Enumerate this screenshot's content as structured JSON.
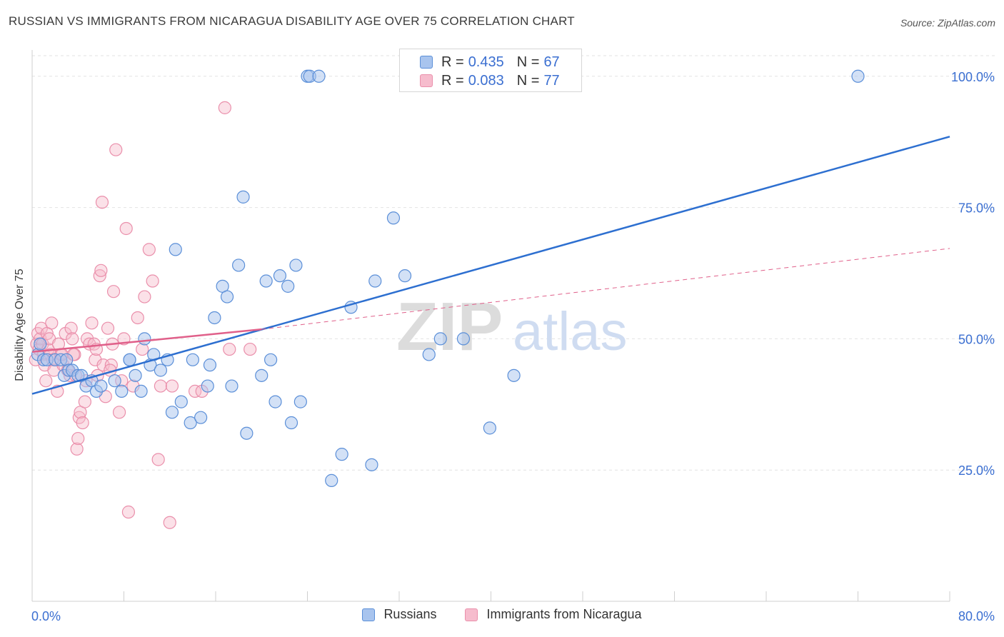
{
  "title": "RUSSIAN VS IMMIGRANTS FROM NICARAGUA DISABILITY AGE OVER 75 CORRELATION CHART",
  "source": "Source: ZipAtlas.com",
  "watermark": {
    "zip": "ZIP",
    "atlas": "atlas"
  },
  "legend_top": {
    "russians": {
      "r_label": "R =",
      "r_value": "0.435",
      "n_label": "N =",
      "n_value": "67"
    },
    "nicaragua": {
      "r_label": "R =",
      "r_value": "0.083",
      "n_label": "N =",
      "n_value": "77"
    }
  },
  "legend_bottom": {
    "russians": "Russians",
    "nicaragua": "Immigrants from Nicaragua"
  },
  "colors": {
    "blue_fill": "#a8c4ee",
    "blue_stroke": "#5b8fd8",
    "blue_line": "#2d6fd0",
    "pink_fill": "#f6bccd",
    "pink_stroke": "#ea8fab",
    "pink_line": "#e0608a",
    "tick_label": "#3b6fd1",
    "grid": "#e2e2e2"
  },
  "chart_data": {
    "type": "scatter",
    "title": "RUSSIAN VS IMMIGRANTS FROM NICARAGUA DISABILITY AGE OVER 75 CORRELATION CHART",
    "xlabel": "",
    "ylabel": "Disability Age Over 75",
    "xlim": [
      0,
      80
    ],
    "ylim": [
      0,
      105
    ],
    "x_tick_labels": [
      "0.0%",
      "80.0%"
    ],
    "y_ticks": [
      25,
      50,
      75,
      100
    ],
    "y_tick_labels": [
      "25.0%",
      "50.0%",
      "75.0%",
      "100.0%"
    ],
    "series": [
      {
        "name": "Russians",
        "points": [
          [
            0.5,
            47
          ],
          [
            0.7,
            49
          ],
          [
            1.0,
            46
          ],
          [
            1.3,
            46
          ],
          [
            2.0,
            46
          ],
          [
            2.5,
            46
          ],
          [
            2.8,
            43
          ],
          [
            3.0,
            46
          ],
          [
            3.2,
            44
          ],
          [
            3.5,
            44
          ],
          [
            4.0,
            43
          ],
          [
            4.3,
            43
          ],
          [
            4.7,
            41
          ],
          [
            5.2,
            42
          ],
          [
            5.6,
            40
          ],
          [
            6.0,
            41
          ],
          [
            7.2,
            42
          ],
          [
            7.8,
            40
          ],
          [
            8.5,
            46
          ],
          [
            8.5,
            46
          ],
          [
            9.0,
            43
          ],
          [
            9.5,
            40
          ],
          [
            9.8,
            50
          ],
          [
            10.3,
            45
          ],
          [
            10.6,
            47
          ],
          [
            11.2,
            44
          ],
          [
            11.8,
            46
          ],
          [
            12.2,
            36
          ],
          [
            12.5,
            67
          ],
          [
            13.0,
            38
          ],
          [
            13.8,
            34
          ],
          [
            14.0,
            46
          ],
          [
            14.7,
            35
          ],
          [
            15.3,
            41
          ],
          [
            15.5,
            45
          ],
          [
            15.9,
            54
          ],
          [
            16.6,
            60
          ],
          [
            17.0,
            58
          ],
          [
            17.4,
            41
          ],
          [
            18.0,
            64
          ],
          [
            18.4,
            77
          ],
          [
            18.7,
            32
          ],
          [
            20.0,
            43
          ],
          [
            20.4,
            61
          ],
          [
            20.8,
            46
          ],
          [
            21.2,
            38
          ],
          [
            21.6,
            62
          ],
          [
            22.3,
            60
          ],
          [
            22.6,
            34
          ],
          [
            23.0,
            64
          ],
          [
            23.4,
            38
          ],
          [
            24.0,
            100
          ],
          [
            24.2,
            100
          ],
          [
            25.0,
            100
          ],
          [
            26.1,
            23
          ],
          [
            27.0,
            28
          ],
          [
            27.8,
            56
          ],
          [
            29.6,
            26
          ],
          [
            29.9,
            61
          ],
          [
            31.5,
            73
          ],
          [
            32.5,
            62
          ],
          [
            34.6,
            47
          ],
          [
            35.6,
            50
          ],
          [
            37.6,
            50
          ],
          [
            39.9,
            33
          ],
          [
            42.0,
            43
          ],
          [
            72.0,
            100
          ]
        ]
      },
      {
        "name": "Immigrants from Nicaragua",
        "points": [
          [
            0.3,
            46
          ],
          [
            0.4,
            49
          ],
          [
            0.5,
            51
          ],
          [
            0.6,
            48
          ],
          [
            0.7,
            50
          ],
          [
            0.8,
            52
          ],
          [
            0.9,
            49
          ],
          [
            1.0,
            47
          ],
          [
            1.1,
            45
          ],
          [
            1.3,
            51
          ],
          [
            1.4,
            48
          ],
          [
            1.5,
            50
          ],
          [
            1.6,
            47
          ],
          [
            1.7,
            53
          ],
          [
            1.8,
            46
          ],
          [
            1.9,
            44
          ],
          [
            2.0,
            46
          ],
          [
            2.2,
            40
          ],
          [
            2.3,
            49
          ],
          [
            2.5,
            47
          ],
          [
            2.7,
            45
          ],
          [
            2.9,
            51
          ],
          [
            3.0,
            46
          ],
          [
            3.1,
            44
          ],
          [
            3.3,
            43
          ],
          [
            3.4,
            52
          ],
          [
            3.5,
            50
          ],
          [
            3.7,
            47
          ],
          [
            3.8,
            43
          ],
          [
            3.9,
            29
          ],
          [
            4.0,
            31
          ],
          [
            4.1,
            35
          ],
          [
            4.2,
            36
          ],
          [
            4.4,
            34
          ],
          [
            4.6,
            38
          ],
          [
            4.8,
            50
          ],
          [
            5.0,
            49
          ],
          [
            5.2,
            53
          ],
          [
            5.4,
            49
          ],
          [
            5.5,
            46
          ],
          [
            5.6,
            48
          ],
          [
            5.7,
            43
          ],
          [
            5.9,
            62
          ],
          [
            6.0,
            63
          ],
          [
            6.1,
            76
          ],
          [
            6.2,
            45
          ],
          [
            6.4,
            39
          ],
          [
            6.6,
            52
          ],
          [
            6.9,
            45
          ],
          [
            7.0,
            49
          ],
          [
            7.1,
            59
          ],
          [
            7.3,
            86
          ],
          [
            7.6,
            36
          ],
          [
            7.8,
            42
          ],
          [
            8.0,
            50
          ],
          [
            8.2,
            71
          ],
          [
            8.4,
            17
          ],
          [
            8.8,
            41
          ],
          [
            9.2,
            54
          ],
          [
            9.6,
            48
          ],
          [
            9.8,
            58
          ],
          [
            10.2,
            67
          ],
          [
            10.5,
            61
          ],
          [
            11.0,
            27
          ],
          [
            11.2,
            41
          ],
          [
            12.0,
            15
          ],
          [
            12.2,
            41
          ],
          [
            14.2,
            40
          ],
          [
            14.8,
            40
          ],
          [
            16.8,
            94
          ],
          [
            17.2,
            48
          ],
          [
            19.0,
            48
          ],
          [
            1.2,
            42
          ],
          [
            2.6,
            47
          ],
          [
            3.6,
            47
          ],
          [
            4.7,
            42
          ],
          [
            6.8,
            44
          ]
        ]
      }
    ],
    "trend_lines": [
      {
        "series": "Russians",
        "x": [
          0,
          80
        ],
        "y": [
          39.5,
          88.5
        ],
        "style": "solid"
      },
      {
        "series": "Immigrants from Nicaragua",
        "x": [
          0,
          20
        ],
        "y": [
          47.5,
          51.8
        ],
        "style": "solid"
      },
      {
        "series": "Immigrants from Nicaragua",
        "x": [
          20,
          80
        ],
        "y": [
          51.8,
          67.2
        ],
        "style": "dashed"
      }
    ]
  }
}
